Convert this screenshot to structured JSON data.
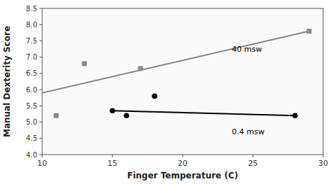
{
  "chart_data": {
    "type": "scatter",
    "title": "",
    "x_label": "Finger Temperature (C)",
    "y_label": "Manual Dexterity Score",
    "xlim": [
      10,
      30
    ],
    "ylim": [
      4,
      8.5
    ],
    "xticks": [
      10,
      15,
      20,
      25,
      30
    ],
    "yticks": [
      {
        "value": 4,
        "label": "4.0"
      },
      4.5,
      {
        "value": 5,
        "label": "5.0"
      },
      5.5,
      {
        "value": 6,
        "label": "6.0"
      },
      6.5,
      {
        "value": 7,
        "label": "7.0"
      },
      7.5,
      {
        "value": 8,
        "label": "8.0"
      },
      8.5
    ],
    "grid": false,
    "series": [
      {
        "type": "line",
        "color": "#888888",
        "x": [
          10,
          29
        ],
        "values": [
          5.9,
          7.8
        ]
      },
      {
        "type": "scatter",
        "color": "#888888",
        "marker": "square",
        "x": [
          11,
          13,
          17,
          29
        ],
        "values": [
          5.2,
          6.8,
          6.65,
          7.8
        ]
      },
      {
        "type": "line",
        "color": "#000000",
        "x": [
          15,
          28
        ],
        "values": [
          5.35,
          5.2
        ]
      },
      {
        "type": "scatter",
        "color": "#000000",
        "marker": "circle",
        "x": [
          15,
          16,
          18,
          28
        ],
        "values": [
          5.35,
          5.2,
          5.8,
          5.2
        ]
      }
    ],
    "annotations": [
      {
        "text": "40 msw",
        "x": 23.5,
        "y": 7.25
      },
      {
        "text": "0.4 msw",
        "x": 23.5,
        "y": 4.72
      }
    ]
  }
}
